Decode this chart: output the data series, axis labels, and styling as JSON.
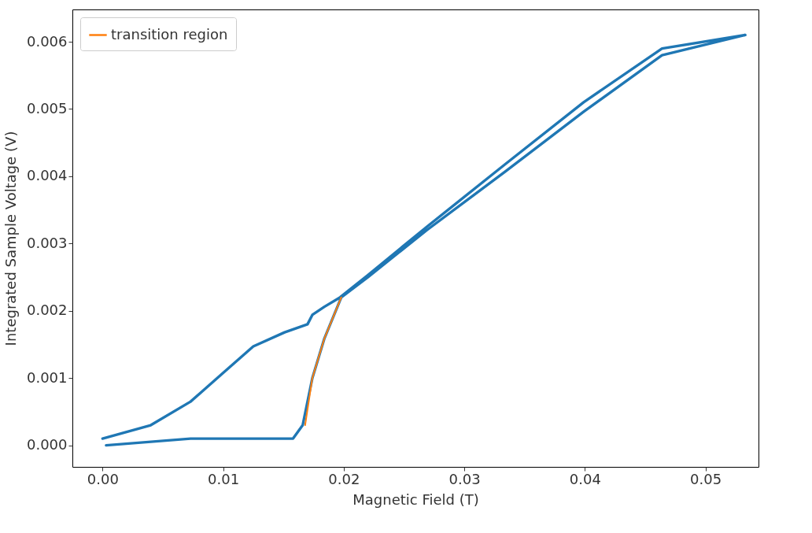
{
  "chart_data": {
    "type": "line",
    "xlabel": "Magnetic Field (T)",
    "ylabel": "Integrated Sample Voltage (V)",
    "xlim": [
      -0.0025,
      0.0544
    ],
    "ylim": [
      -0.00032,
      0.00648
    ],
    "xticks": [
      {
        "value": 0,
        "label": "0.00"
      },
      {
        "value": 0.01,
        "label": "0.01"
      },
      {
        "value": 0.02,
        "label": "0.02"
      },
      {
        "value": 0.03,
        "label": "0.03"
      },
      {
        "value": 0.04,
        "label": "0.04"
      },
      {
        "value": 0.05,
        "label": "0.05"
      }
    ],
    "yticks": [
      {
        "value": 0,
        "label": "0.000"
      },
      {
        "value": 0.001,
        "label": "0.001"
      },
      {
        "value": 0.002,
        "label": "0.002"
      },
      {
        "value": 0.003,
        "label": "0.003"
      },
      {
        "value": 0.004,
        "label": "0.004"
      },
      {
        "value": 0.005,
        "label": "0.005"
      },
      {
        "value": 0.006,
        "label": "0.006"
      }
    ],
    "legend": "top left",
    "grid": false,
    "marker": "none",
    "line_style": "solid",
    "series": [
      {
        "color": "#1f77b4",
        "x": [
          0.0003,
          0.0073,
          0.0158,
          0.0162,
          0.0166,
          0.0174,
          0.0184,
          0.0198,
          0.022,
          0.0269,
          0.0334,
          0.0399,
          0.0464,
          0.0533,
          0.0464,
          0.0399,
          0.0334,
          0.0269,
          0.022,
          0.0197,
          0.0184,
          0.0174,
          0.017,
          0.0151,
          0.0125,
          0.0099,
          0.0073,
          0.004,
          0
        ],
        "values": [
          0,
          0.0001,
          0.0001,
          0.0002,
          0.0003,
          0.001,
          0.00159,
          0.0022,
          0.0025,
          0.0032,
          0.00407,
          0.00496,
          0.0058,
          0.0061,
          0.0059,
          0.0051,
          0.00418,
          0.00325,
          0.00253,
          0.0022,
          0.00206,
          0.00194,
          0.0018,
          0.00168,
          0.00147,
          0.00106,
          0.00065,
          0.0003,
          0.0001
        ]
      },
      {
        "name": "transition region",
        "color": "#ff7f0e",
        "x": [
          0.0168,
          0.0174,
          0.0184,
          0.0198
        ],
        "values": [
          0.0003,
          0.001,
          0.00159,
          0.0022
        ]
      }
    ]
  }
}
